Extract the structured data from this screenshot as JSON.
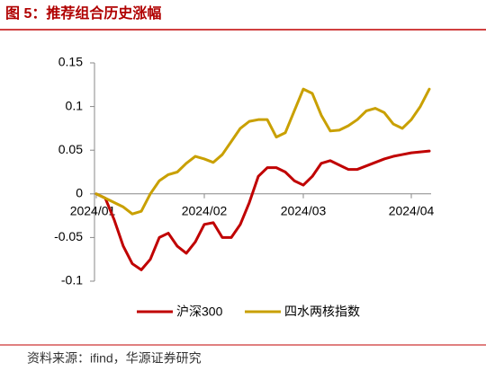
{
  "header": {
    "title": "图 5：推荐组合历史涨幅"
  },
  "chart_data": {
    "type": "line",
    "categories": [
      "2024/01",
      null,
      null,
      null,
      null,
      null,
      null,
      null,
      null,
      null,
      null,
      null,
      "2024/02",
      null,
      null,
      null,
      null,
      null,
      null,
      null,
      null,
      null,
      null,
      "2024/03",
      null,
      null,
      null,
      null,
      null,
      null,
      null,
      null,
      null,
      null,
      null,
      "2024/04",
      null,
      null
    ],
    "series": [
      {
        "name": "沪深300",
        "color": "#c00000",
        "values": [
          0,
          -0.005,
          -0.03,
          -0.06,
          -0.08,
          -0.087,
          -0.075,
          -0.05,
          -0.045,
          -0.06,
          -0.068,
          -0.055,
          -0.035,
          -0.033,
          -0.05,
          -0.05,
          -0.035,
          -0.01,
          0.02,
          0.03,
          0.03,
          0.025,
          0.015,
          0.01,
          0.02,
          0.035,
          0.038,
          0.033,
          0.028,
          0.028,
          0.032,
          0.036,
          0.04,
          0.043,
          0.045,
          0.047,
          0.048,
          0.049
        ]
      },
      {
        "name": "四水两核指数",
        "color": "#c9a000",
        "values": [
          0,
          -0.005,
          -0.01,
          -0.015,
          -0.023,
          -0.02,
          0.0,
          0.015,
          0.022,
          0.025,
          0.035,
          0.043,
          0.04,
          0.036,
          0.045,
          0.06,
          0.075,
          0.083,
          0.085,
          0.085,
          0.065,
          0.07,
          0.095,
          0.12,
          0.115,
          0.09,
          0.072,
          0.073,
          0.078,
          0.085,
          0.095,
          0.098,
          0.093,
          0.08,
          0.075,
          0.085,
          0.1,
          0.12
        ]
      }
    ],
    "ylim": [
      -0.1,
      0.15
    ],
    "yticks": [
      -0.1,
      -0.05,
      0,
      0.05,
      0.1,
      0.15
    ],
    "grid": false,
    "legend": "bottom"
  },
  "footer": {
    "source": "资料来源：ifind，华源证券研究"
  }
}
